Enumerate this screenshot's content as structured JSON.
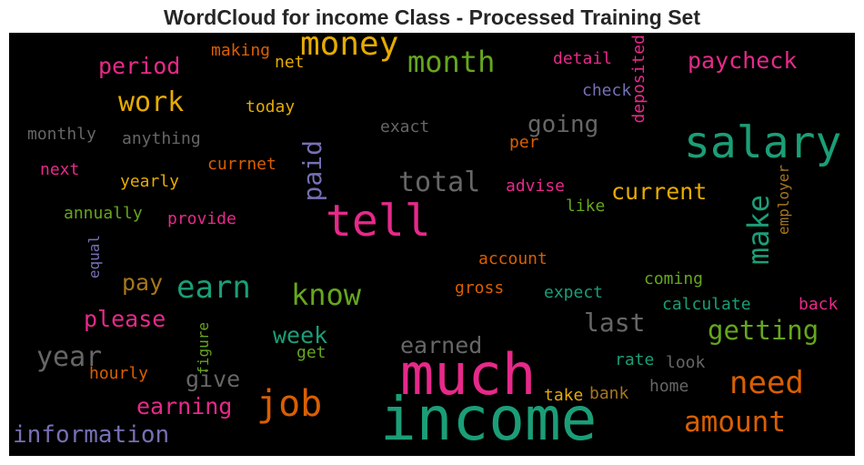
{
  "chart_data": {
    "type": "wordcloud",
    "title": "WordCloud for income Class - Processed Training Set",
    "background": "#000000",
    "words": [
      {
        "text": "income",
        "color": "#1b9e77",
        "orientation": "horizontal"
      },
      {
        "text": "much",
        "color": "#e7298a",
        "orientation": "horizontal"
      },
      {
        "text": "salary",
        "color": "#1b9e77",
        "orientation": "horizontal"
      },
      {
        "text": "tell",
        "color": "#e7298a",
        "orientation": "horizontal"
      },
      {
        "text": "money",
        "color": "#e6ab02",
        "orientation": "horizontal"
      },
      {
        "text": "job",
        "color": "#d95f02",
        "orientation": "horizontal"
      },
      {
        "text": "month",
        "color": "#66a61e",
        "orientation": "horizontal"
      },
      {
        "text": "earn",
        "color": "#1b9e77",
        "orientation": "horizontal"
      },
      {
        "text": "know",
        "color": "#66a61e",
        "orientation": "horizontal"
      },
      {
        "text": "make",
        "color": "#1b9e77",
        "orientation": "vertical"
      },
      {
        "text": "need",
        "color": "#d95f02",
        "orientation": "horizontal"
      },
      {
        "text": "amount",
        "color": "#d95f02",
        "orientation": "horizontal"
      },
      {
        "text": "work",
        "color": "#e6ab02",
        "orientation": "horizontal"
      },
      {
        "text": "paid",
        "color": "#7570b3",
        "orientation": "vertical"
      },
      {
        "text": "total",
        "color": "#666666",
        "orientation": "horizontal"
      },
      {
        "text": "year",
        "color": "#666666",
        "orientation": "horizontal"
      },
      {
        "text": "last",
        "color": "#666666",
        "orientation": "horizontal"
      },
      {
        "text": "getting",
        "color": "#66a61e",
        "orientation": "horizontal"
      },
      {
        "text": "paycheck",
        "color": "#e7298a",
        "orientation": "horizontal"
      },
      {
        "text": "period",
        "color": "#e7298a",
        "orientation": "horizontal"
      },
      {
        "text": "going",
        "color": "#666666",
        "orientation": "horizontal"
      },
      {
        "text": "current",
        "color": "#e6ab02",
        "orientation": "horizontal"
      },
      {
        "text": "information",
        "color": "#7570b3",
        "orientation": "horizontal"
      },
      {
        "text": "earning",
        "color": "#e7298a",
        "orientation": "horizontal"
      },
      {
        "text": "please",
        "color": "#e7298a",
        "orientation": "horizontal"
      },
      {
        "text": "earned",
        "color": "#666666",
        "orientation": "horizontal"
      },
      {
        "text": "week",
        "color": "#1b9e77",
        "orientation": "horizontal"
      },
      {
        "text": "give",
        "color": "#666666",
        "orientation": "horizontal"
      },
      {
        "text": "pay",
        "color": "#a6761d",
        "orientation": "horizontal"
      },
      {
        "text": "deposited",
        "color": "#e7298a",
        "orientation": "vertical"
      },
      {
        "text": "monthly",
        "color": "#666666",
        "orientation": "horizontal"
      },
      {
        "text": "anything",
        "color": "#666666",
        "orientation": "horizontal"
      },
      {
        "text": "today",
        "color": "#e6ab02",
        "orientation": "horizontal"
      },
      {
        "text": "exact",
        "color": "#666666",
        "orientation": "horizontal"
      },
      {
        "text": "making",
        "color": "#d95f02",
        "orientation": "horizontal"
      },
      {
        "text": "net",
        "color": "#e6ab02",
        "orientation": "horizontal"
      },
      {
        "text": "detail",
        "color": "#e7298a",
        "orientation": "horizontal"
      },
      {
        "text": "check",
        "color": "#7570b3",
        "orientation": "horizontal"
      },
      {
        "text": "per",
        "color": "#d95f02",
        "orientation": "horizontal"
      },
      {
        "text": "next",
        "color": "#e7298a",
        "orientation": "horizontal"
      },
      {
        "text": "currnet",
        "color": "#d95f02",
        "orientation": "horizontal"
      },
      {
        "text": "yearly",
        "color": "#e6ab02",
        "orientation": "horizontal"
      },
      {
        "text": "advise",
        "color": "#e7298a",
        "orientation": "horizontal"
      },
      {
        "text": "employer",
        "color": "#a6761d",
        "orientation": "vertical"
      },
      {
        "text": "annually",
        "color": "#66a61e",
        "orientation": "horizontal"
      },
      {
        "text": "provide",
        "color": "#e7298a",
        "orientation": "horizontal"
      },
      {
        "text": "like",
        "color": "#66a61e",
        "orientation": "horizontal"
      },
      {
        "text": "equal",
        "color": "#7570b3",
        "orientation": "vertical"
      },
      {
        "text": "account",
        "color": "#d95f02",
        "orientation": "horizontal"
      },
      {
        "text": "coming",
        "color": "#66a61e",
        "orientation": "horizontal"
      },
      {
        "text": "gross",
        "color": "#d95f02",
        "orientation": "horizontal"
      },
      {
        "text": "expect",
        "color": "#1b9e77",
        "orientation": "horizontal"
      },
      {
        "text": "calculate",
        "color": "#1b9e77",
        "orientation": "horizontal"
      },
      {
        "text": "back",
        "color": "#e7298a",
        "orientation": "horizontal"
      },
      {
        "text": "figure",
        "color": "#66a61e",
        "orientation": "vertical"
      },
      {
        "text": "get",
        "color": "#66a61e",
        "orientation": "horizontal"
      },
      {
        "text": "hourly",
        "color": "#d95f02",
        "orientation": "horizontal"
      },
      {
        "text": "rate",
        "color": "#1b9e77",
        "orientation": "horizontal"
      },
      {
        "text": "look",
        "color": "#666666",
        "orientation": "horizontal"
      },
      {
        "text": "take",
        "color": "#e6ab02",
        "orientation": "horizontal"
      },
      {
        "text": "bank",
        "color": "#a6761d",
        "orientation": "horizontal"
      },
      {
        "text": "home",
        "color": "#666666",
        "orientation": "horizontal"
      }
    ]
  }
}
